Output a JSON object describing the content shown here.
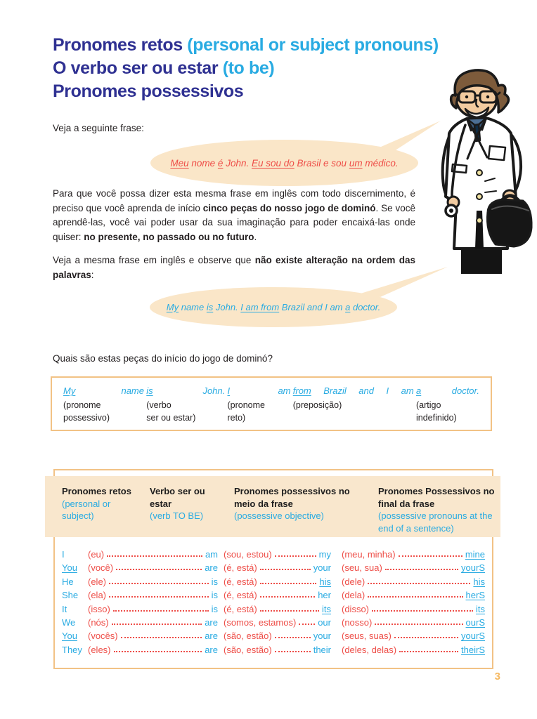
{
  "colors": {
    "navy": "#2F3192",
    "cyan": "#29ABE2",
    "red": "#EE4E48",
    "ink": "#231F20",
    "peach": "#FAE6C8",
    "band": "#F9E7CD",
    "border": "#F2C285",
    "orange": "#F5B860"
  },
  "page_number": "3",
  "title": {
    "line1_main": "Pronomes retos",
    "line1_sub": " (personal or subject pronouns)",
    "line2_main": "O verbo ser ou estar",
    "line2_sub": " (to be)",
    "line3_main": "Pronomes possessivos"
  },
  "intro_lead": "Veja a seguinte frase:",
  "bubble_pt": {
    "segments": [
      {
        "t": "Meu",
        "u": true
      },
      {
        "t": " nome "
      },
      {
        "t": "é",
        "u": true
      },
      {
        "t": " John. "
      },
      {
        "t": "Eu sou do",
        "u": true
      },
      {
        "t": " Brasil e sou "
      },
      {
        "t": "um",
        "u": true
      },
      {
        "t": " médico."
      }
    ]
  },
  "paragraph1": {
    "segments": [
      {
        "t": "Para que você possa dizer esta mesma frase em inglês com todo discernimento, é preciso que você aprenda de início "
      },
      {
        "t": "cinco peças do nosso jogo de dominó",
        "b": true
      },
      {
        "t": ". Se você aprendê-las, você vai poder usar da sua imaginação para poder encaixá-las onde quiser: "
      },
      {
        "t": "no presente, no passado ou no futuro",
        "b": true
      },
      {
        "t": "."
      }
    ]
  },
  "paragraph2": {
    "segments": [
      {
        "t": "Veja a mesma frase em inglês e observe que "
      },
      {
        "t": "não existe alteração na ordem das palavras",
        "b": true
      },
      {
        "t": ":"
      }
    ]
  },
  "bubble_en": {
    "segments": [
      {
        "t": "My",
        "u": true
      },
      {
        "t": " name "
      },
      {
        "t": "is",
        "u": true
      },
      {
        "t": " John. "
      },
      {
        "t": "I am from",
        "u": true
      },
      {
        "t": " Brazil and I am "
      },
      {
        "t": "a",
        "u": true
      },
      {
        "t": " doctor."
      }
    ]
  },
  "question": "Quais são estas peças do início do jogo de dominó?",
  "analysis": {
    "columns": [
      {
        "words": [
          {
            "t": "My",
            "u": true
          },
          {
            "t": "name"
          }
        ],
        "labels": [
          "(pronome",
          "possessivo)"
        ]
      },
      {
        "words": [
          {
            "t": "is",
            "u": true
          },
          {
            "t": "John."
          }
        ],
        "labels": [
          "(verbo",
          "ser ou estar)"
        ]
      },
      {
        "words": [
          {
            "t": "I",
            "u": true
          },
          {
            "t": "am"
          }
        ],
        "labels": [
          "(pronome",
          "reto)"
        ]
      },
      {
        "words": [
          {
            "t": "from",
            "u": true
          },
          {
            "t": "Brazil"
          },
          {
            "t": "and"
          },
          {
            "t": "I"
          },
          {
            "t": "am"
          }
        ],
        "labels": [
          "(preposição)",
          ""
        ]
      },
      {
        "words": [
          {
            "t": "a",
            "u": true
          },
          {
            "t": "doctor."
          }
        ],
        "labels": [
          "(artigo",
          "indefinido)"
        ]
      }
    ]
  },
  "grammar_table": {
    "headers": [
      {
        "pt": "Pronomes retos",
        "en": "(personal or subject)"
      },
      {
        "pt": "Verbo ser ou estar",
        "en": "(verb TO BE)"
      },
      {
        "pt": "Pronomes possessivos no meio da frase",
        "en": "(possessive objective)"
      },
      {
        "pt": "Pronomes Possessivos no final da frase",
        "en": "(possessive pronouns at the end of a sentence)"
      }
    ],
    "rows": [
      {
        "pronoun": "I",
        "pronoun_u": false,
        "pt": "(eu)",
        "verb": "am",
        "mid_pt": "(sou, estou)",
        "mid": "my",
        "mid_u": false,
        "end_pt": "(meu, minha)",
        "end": "mine"
      },
      {
        "pronoun": "You",
        "pronoun_u": true,
        "pt": "(você)",
        "verb": "are",
        "mid_pt": "(é, está)",
        "mid": "your",
        "mid_u": false,
        "end_pt": "(seu, sua)",
        "end": "yourS"
      },
      {
        "pronoun": "He",
        "pronoun_u": false,
        "pt": "(ele)",
        "verb": "is",
        "mid_pt": "(é, está)",
        "mid": "his",
        "mid_u": true,
        "end_pt": "(dele)",
        "end": "his"
      },
      {
        "pronoun": "She",
        "pronoun_u": false,
        "pt": "(ela)",
        "verb": "is",
        "mid_pt": "(é, está)",
        "mid": "her",
        "mid_u": false,
        "end_pt": "(dela)",
        "end": "herS"
      },
      {
        "pronoun": "It",
        "pronoun_u": false,
        "pt": "(isso)",
        "verb": "is",
        "mid_pt": "(é, está)",
        "mid": "its",
        "mid_u": true,
        "end_pt": "(disso)",
        "end": "its"
      },
      {
        "pronoun": "We",
        "pronoun_u": false,
        "pt": "(nós)",
        "verb": "are",
        "mid_pt": "(somos, estamos)",
        "mid": "our",
        "mid_u": false,
        "end_pt": "(nosso)",
        "end": "ourS"
      },
      {
        "pronoun": "You",
        "pronoun_u": true,
        "pt": "(vocês)",
        "verb": "are",
        "mid_pt": "(são, estão)",
        "mid": "your",
        "mid_u": false,
        "end_pt": "(seus, suas)",
        "end": "yourS"
      },
      {
        "pronoun": "They",
        "pronoun_u": false,
        "pt": "(eles)",
        "verb": "are",
        "mid_pt": "(são, estão)",
        "mid": "their",
        "mid_u": false,
        "end_pt": "(deles, delas)",
        "end": "theirS"
      }
    ]
  }
}
